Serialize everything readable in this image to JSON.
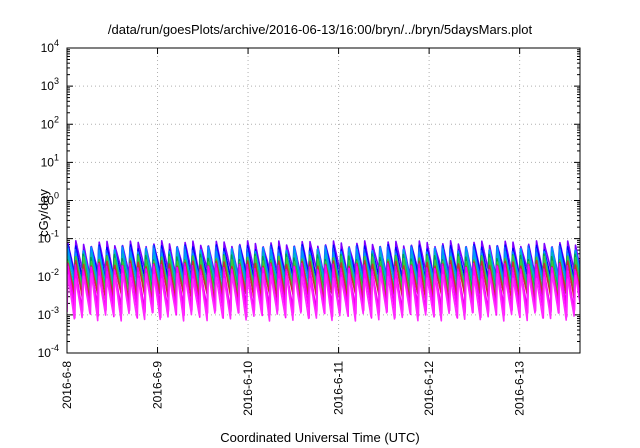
{
  "chart_data": {
    "type": "line",
    "title": "/data/run/goesPlots/archive/2016-06-13/16:00/bryn/../bryn/5daysMars.plot",
    "xlabel": "Coordinated Universal Time (UTC)",
    "ylabel": "cGy/day",
    "y_scale": "log",
    "ylim": [
      0.0001,
      10000
    ],
    "y_ticks": [
      {
        "base": "10",
        "exp": "-4",
        "value": 0.0001
      },
      {
        "base": "10",
        "exp": "-3",
        "value": 0.001
      },
      {
        "base": "10",
        "exp": "-2",
        "value": 0.01
      },
      {
        "base": "10",
        "exp": "-1",
        "value": 0.1
      },
      {
        "base": "10",
        "exp": "0",
        "value": 1
      },
      {
        "base": "10",
        "exp": "1",
        "value": 10
      },
      {
        "base": "10",
        "exp": "2",
        "value": 100
      },
      {
        "base": "10",
        "exp": "3",
        "value": 1000
      },
      {
        "base": "10",
        "exp": "4",
        "value": 10000
      }
    ],
    "x_range": [
      "2016-06-08T00:00",
      "2016-06-13T16:00"
    ],
    "x_ticks": [
      "2016-6-8",
      "2016-6-9",
      "2016-6-10",
      "2016-6-11",
      "2016-6-12",
      "2016-6-13"
    ],
    "grid": true,
    "legend": "none",
    "oscillation_period_hours": 2.07,
    "series": [
      {
        "color": "#7f00ff",
        "peak": 0.075,
        "trough": 0.012
      },
      {
        "color": "#0000ff",
        "peak": 0.065,
        "trough": 0.009
      },
      {
        "color": "#1e5aff",
        "peak": 0.058,
        "trough": 0.0075
      },
      {
        "color": "#0096ff",
        "peak": 0.05,
        "trough": 0.006
      },
      {
        "color": "#00b4c8",
        "peak": 0.042,
        "trough": 0.005
      },
      {
        "color": "#00a050",
        "peak": 0.035,
        "trough": 0.0042
      },
      {
        "color": "#3cc83c",
        "peak": 0.03,
        "trough": 0.0035
      },
      {
        "color": "#c83232",
        "peak": 0.025,
        "trough": 0.0028
      },
      {
        "color": "#e600e6",
        "peak": 0.02,
        "trough": 0.0016
      },
      {
        "color": "#ff00ff",
        "peak": 0.016,
        "trough": 0.0011
      },
      {
        "color": "#ff2aff",
        "peak": 0.012,
        "trough": 0.00085
      }
    ]
  }
}
